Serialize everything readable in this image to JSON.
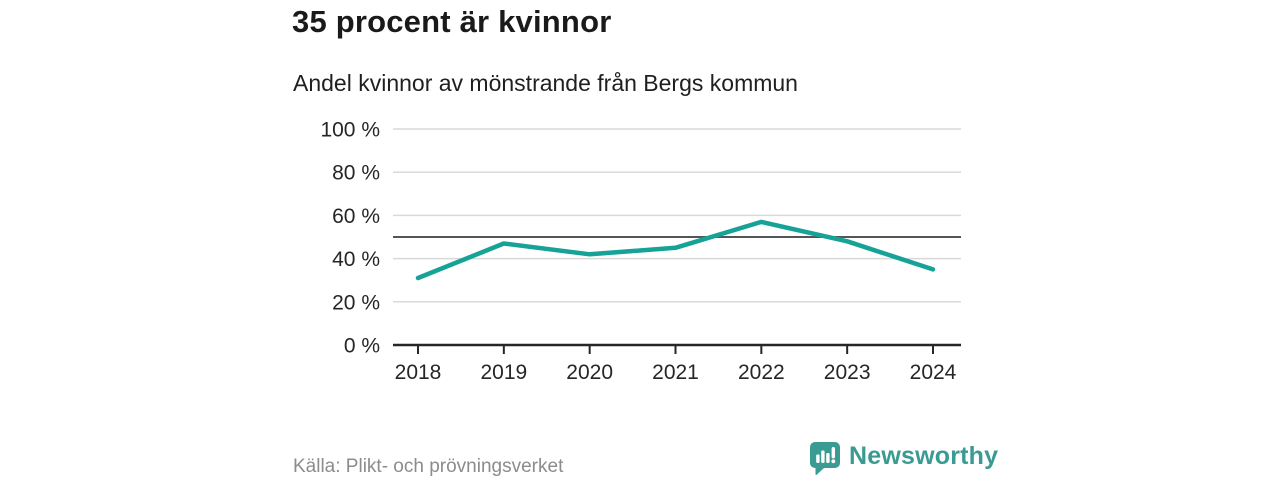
{
  "header": {
    "title": "35 procent är kvinnor",
    "subtitle": "Andel kvinnor av mönstrande från Bergs kommun"
  },
  "chart_data": {
    "type": "line",
    "title": "35 procent är kvinnor",
    "subtitle": "Andel kvinnor av mönstrande från Bergs kommun",
    "categories": [
      "2018",
      "2019",
      "2020",
      "2021",
      "2022",
      "2023",
      "2024"
    ],
    "values": [
      31,
      47,
      42,
      45,
      57,
      48,
      35
    ],
    "unit": "%",
    "xlabel": "",
    "ylabel": "",
    "ylim": [
      0,
      100
    ],
    "yticks": [
      0,
      20,
      40,
      60,
      80,
      100
    ],
    "ytick_labels": [
      "0 %",
      "20 %",
      "40 %",
      "60 %",
      "80 %",
      "100 %"
    ],
    "reference_line": 50,
    "grid": true,
    "legend": "none",
    "colors": {
      "line": "#16a296",
      "gridline": "#d9d9d9",
      "reference_line": "#555555",
      "axis": "#262626",
      "tick_label": "#262626"
    }
  },
  "footer": {
    "source": "Källa: Plikt- och prövningsverket",
    "brand": "Newsworthy",
    "brand_color": "#3a9b92"
  }
}
